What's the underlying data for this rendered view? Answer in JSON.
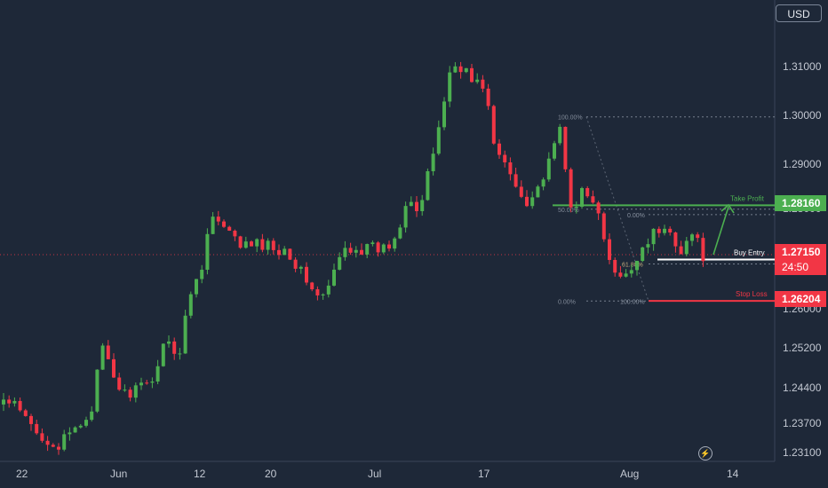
{
  "currency_button": "USD",
  "current_price_tag": "1.27150",
  "countdown_tag": "24:50",
  "take_profit_tag": "1.28160",
  "stop_loss_tag": "1.26204",
  "snap_icon": "lightning-icon",
  "colors": {
    "background": "#1e2838",
    "up_candle": "#4caf50",
    "down_candle": "#f23645",
    "take_profit": "#4caf50",
    "stop_loss": "#f23645",
    "current_price": "#f23645",
    "buy_entry_line": "#ffffff",
    "fib_lines": "#9aa3b1",
    "axis_text": "#c3c8d2"
  },
  "chart_data": {
    "type": "candlestick",
    "title": "",
    "xlabel": "",
    "ylabel": "",
    "y_ticks": [
      "1.31000",
      "1.30000",
      "1.29000",
      "1.28000",
      "1.27150",
      "1.26000",
      "1.25200",
      "1.24400",
      "1.23700",
      "1.23100"
    ],
    "x_ticks": [
      "22",
      "Jun",
      "12",
      "20",
      "Jul",
      "17",
      "Aug",
      "14"
    ],
    "ylim": [
      1.2275,
      1.3195
    ],
    "grid": false,
    "levels": {
      "take_profit": {
        "label": "Take Profit",
        "value": 1.2816
      },
      "buy_entry": {
        "label": "Buy Entry",
        "value": 1.2705
      },
      "stop_loss": {
        "label": "Stop Loss",
        "value": 1.26204
      },
      "current_price": {
        "value": 1.2715
      }
    },
    "fib_upper": [
      {
        "label": "100.00%",
        "value": 1.2997
      },
      {
        "label": "50.00%",
        "value": 1.2808
      },
      {
        "label": "0.00%",
        "value": 1.262
      }
    ],
    "fib_lower": [
      {
        "label": "0.00%",
        "value": 1.2797
      },
      {
        "label": "61.80%",
        "value": 1.2696
      },
      {
        "label": "100.00%",
        "value": 1.262
      }
    ],
    "anchor_prices": [
      [
        1.2416,
        1.2404,
        1.2378,
        1.2349,
        1.2339,
        1.2321,
        1.2344,
        1.2367,
        1.2397,
        1.2523,
        1.2468,
        1.2428,
        1.244
      ],
      [
        1.244,
        1.2483,
        1.2557,
        1.2495,
        1.2634,
        1.2682,
        1.2795,
        1.277,
        1.2746,
        1.2732,
        1.2735
      ],
      [
        1.2735,
        1.2728,
        1.2727,
        1.2683,
        1.2658,
        1.2617,
        1.2661,
        1.2723,
        1.2733,
        1.2725,
        1.2727
      ],
      [
        1.2727,
        1.2757,
        1.2847,
        1.2798,
        1.289,
        1.3,
        1.3103,
        1.3102,
        1.3064
      ],
      [
        1.3064,
        1.292,
        1.2897,
        1.285,
        1.2825,
        1.2857,
        1.2903,
        1.2982,
        1.278,
        1.2855,
        1.2831,
        1.2735,
        1.2666
      ],
      [
        1.2666,
        1.2715,
        1.275,
        1.2764,
        1.276,
        1.2727,
        1.2758,
        1.2715
      ]
    ]
  }
}
